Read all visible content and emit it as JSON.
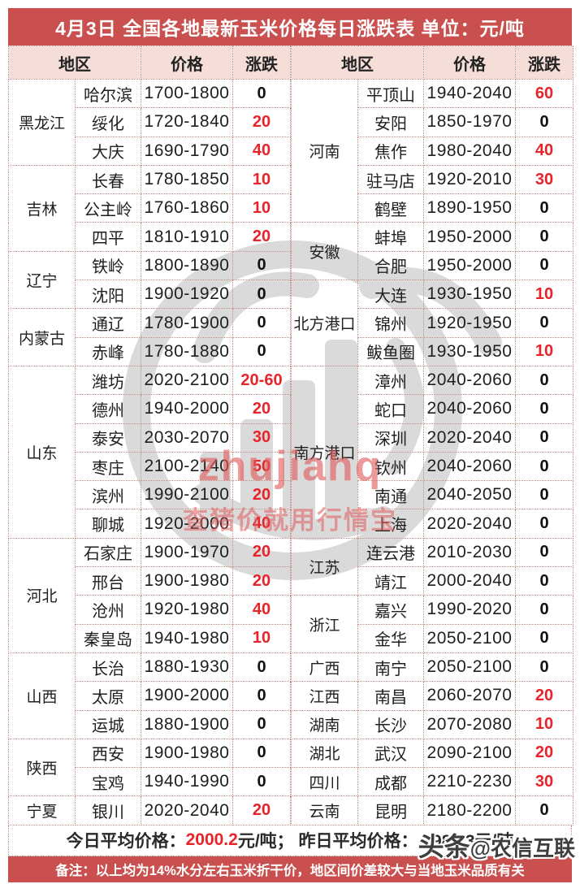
{
  "title": "4月3日 全国各地最新玉米价格每日涨跌表  单位：元/吨",
  "columns": {
    "region": "地区",
    "price": "价格",
    "change": "涨跌"
  },
  "left_groups": [
    {
      "province": "黑龙江",
      "rows": [
        {
          "city": "哈尔滨",
          "price": "1700-1800",
          "change": "0",
          "up": false
        },
        {
          "city": "绥化",
          "price": "1720-1840",
          "change": "20",
          "up": true
        },
        {
          "city": "大庆",
          "price": "1690-1790",
          "change": "40",
          "up": true
        }
      ]
    },
    {
      "province": "吉林",
      "rows": [
        {
          "city": "长春",
          "price": "1780-1850",
          "change": "10",
          "up": true
        },
        {
          "city": "公主岭",
          "price": "1760-1860",
          "change": "10",
          "up": true
        },
        {
          "city": "四平",
          "price": "1810-1910",
          "change": "20",
          "up": true
        }
      ]
    },
    {
      "province": "辽宁",
      "rows": [
        {
          "city": "铁岭",
          "price": "1800-1890",
          "change": "0",
          "up": false
        },
        {
          "city": "沈阳",
          "price": "1900-1920",
          "change": "0",
          "up": false
        }
      ]
    },
    {
      "province": "内蒙古",
      "rows": [
        {
          "city": "通辽",
          "price": "1780-1900",
          "change": "0",
          "up": false
        },
        {
          "city": "赤峰",
          "price": "1780-1880",
          "change": "0",
          "up": false
        }
      ]
    },
    {
      "province": "山东",
      "rows": [
        {
          "city": "潍坊",
          "price": "2020-2100",
          "change": "20-60",
          "up": true
        },
        {
          "city": "德州",
          "price": "1940-2000",
          "change": "20",
          "up": true
        },
        {
          "city": "泰安",
          "price": "2030-2070",
          "change": "30",
          "up": true
        },
        {
          "city": "枣庄",
          "price": "2100-2140",
          "change": "50",
          "up": true
        },
        {
          "city": "滨州",
          "price": "1990-2100",
          "change": "20",
          "up": true
        },
        {
          "city": "聊城",
          "price": "1920-2000",
          "change": "40",
          "up": true
        }
      ]
    },
    {
      "province": "河北",
      "rows": [
        {
          "city": "石家庄",
          "price": "1900-1970",
          "change": "20",
          "up": true
        },
        {
          "city": "邢台",
          "price": "1900-1980",
          "change": "20",
          "up": true
        },
        {
          "city": "沧州",
          "price": "1920-1980",
          "change": "40",
          "up": true
        },
        {
          "city": "秦皇岛",
          "price": "1940-1980",
          "change": "10",
          "up": true
        }
      ]
    },
    {
      "province": "山西",
      "rows": [
        {
          "city": "长治",
          "price": "1880-1930",
          "change": "0",
          "up": false
        },
        {
          "city": "太原",
          "price": "1900-2000",
          "change": "0",
          "up": false
        },
        {
          "city": "运城",
          "price": "1880-1900",
          "change": "0",
          "up": false
        }
      ]
    },
    {
      "province": "陕西",
      "rows": [
        {
          "city": "西安",
          "price": "1900-1980",
          "change": "0",
          "up": false
        },
        {
          "city": "宝鸡",
          "price": "1940-1990",
          "change": "0",
          "up": false
        }
      ]
    },
    {
      "province": "宁夏",
      "rows": [
        {
          "city": "银川",
          "price": "2020-2040",
          "change": "20",
          "up": true
        }
      ]
    }
  ],
  "right_groups": [
    {
      "province": "河南",
      "rows": [
        {
          "city": "平顶山",
          "price": "1940-2040",
          "change": "60",
          "up": true
        },
        {
          "city": "安阳",
          "price": "1850-1970",
          "change": "0",
          "up": false
        },
        {
          "city": "焦作",
          "price": "1980-2040",
          "change": "40",
          "up": true
        },
        {
          "city": "驻马店",
          "price": "1920-2010",
          "change": "30",
          "up": true
        },
        {
          "city": "鹤壁",
          "price": "1890-1950",
          "change": "0",
          "up": false
        }
      ]
    },
    {
      "province": "安徽",
      "rows": [
        {
          "city": "蚌埠",
          "price": "1950-2000",
          "change": "0",
          "up": false
        },
        {
          "city": "合肥",
          "price": "1950-2000",
          "change": "0",
          "up": false
        }
      ]
    },
    {
      "province": "北方港口",
      "rows": [
        {
          "city": "大连",
          "price": "1930-1950",
          "change": "10",
          "up": true
        },
        {
          "city": "锦州",
          "price": "1920-1950",
          "change": "0",
          "up": false
        },
        {
          "city": "鲅鱼圈",
          "price": "1930-1950",
          "change": "10",
          "up": true
        }
      ]
    },
    {
      "province": "南方港口",
      "rows": [
        {
          "city": "漳州",
          "price": "2040-2060",
          "change": "0",
          "up": false
        },
        {
          "city": "蛇口",
          "price": "2040-2060",
          "change": "0",
          "up": false
        },
        {
          "city": "深圳",
          "price": "2020-2040",
          "change": "0",
          "up": false
        },
        {
          "city": "钦州",
          "price": "2040-2060",
          "change": "0",
          "up": false
        },
        {
          "city": "南通",
          "price": "2040-2050",
          "change": "0",
          "up": false
        },
        {
          "city": "上海",
          "price": "2020-2040",
          "change": "0",
          "up": false
        }
      ]
    },
    {
      "province": "江苏",
      "rows": [
        {
          "city": "连云港",
          "price": "2010-2030",
          "change": "0",
          "up": false
        },
        {
          "city": "靖江",
          "price": "2000-2040",
          "change": "0",
          "up": false
        }
      ]
    },
    {
      "province": "浙江",
      "rows": [
        {
          "city": "嘉兴",
          "price": "1990-2020",
          "change": "0",
          "up": false
        },
        {
          "city": "金华",
          "price": "2050-2100",
          "change": "0",
          "up": false
        }
      ]
    },
    {
      "province": "广西",
      "rows": [
        {
          "city": "南宁",
          "price": "2050-2100",
          "change": "0",
          "up": false
        }
      ]
    },
    {
      "province": "江西",
      "rows": [
        {
          "city": "南昌",
          "price": "2060-2070",
          "change": "20",
          "up": true
        }
      ]
    },
    {
      "province": "湖南",
      "rows": [
        {
          "city": "长沙",
          "price": "2070-2080",
          "change": "10",
          "up": true
        }
      ]
    },
    {
      "province": "湖北",
      "rows": [
        {
          "city": "武汉",
          "price": "2090-2100",
          "change": "20",
          "up": true
        }
      ]
    },
    {
      "province": "四川",
      "rows": [
        {
          "city": "成都",
          "price": "2210-2230",
          "change": "30",
          "up": true
        }
      ]
    },
    {
      "province": "云南",
      "rows": [
        {
          "city": "昆明",
          "price": "2180-2200",
          "change": "0",
          "up": false
        }
      ]
    }
  ],
  "summary": {
    "prefix": "今日平均价格： ",
    "today_value": "2000.2",
    "rest": "元/吨； 昨日平均价格： 1988.3元/吨"
  },
  "note": "备注：以上均为14%水分左右玉米折干价，地区间价差较大与当地玉米品质有关",
  "watermark": {
    "brand": "zhujiahq",
    "slogan": "查猪价就用行情宝",
    "credit_prefix": "头条",
    "credit_handle": "@农信互联"
  },
  "colors": {
    "accent_red": "#c9504e",
    "header_pink": "#f5ded7",
    "border_red": "#c98e83",
    "value_red": "#e8232a",
    "text_dark": "#1f1f1f",
    "watermark_gray": "#d4d4d4",
    "watermark_red": "#e05c5c",
    "credit_gray": "#3e3e3e"
  }
}
